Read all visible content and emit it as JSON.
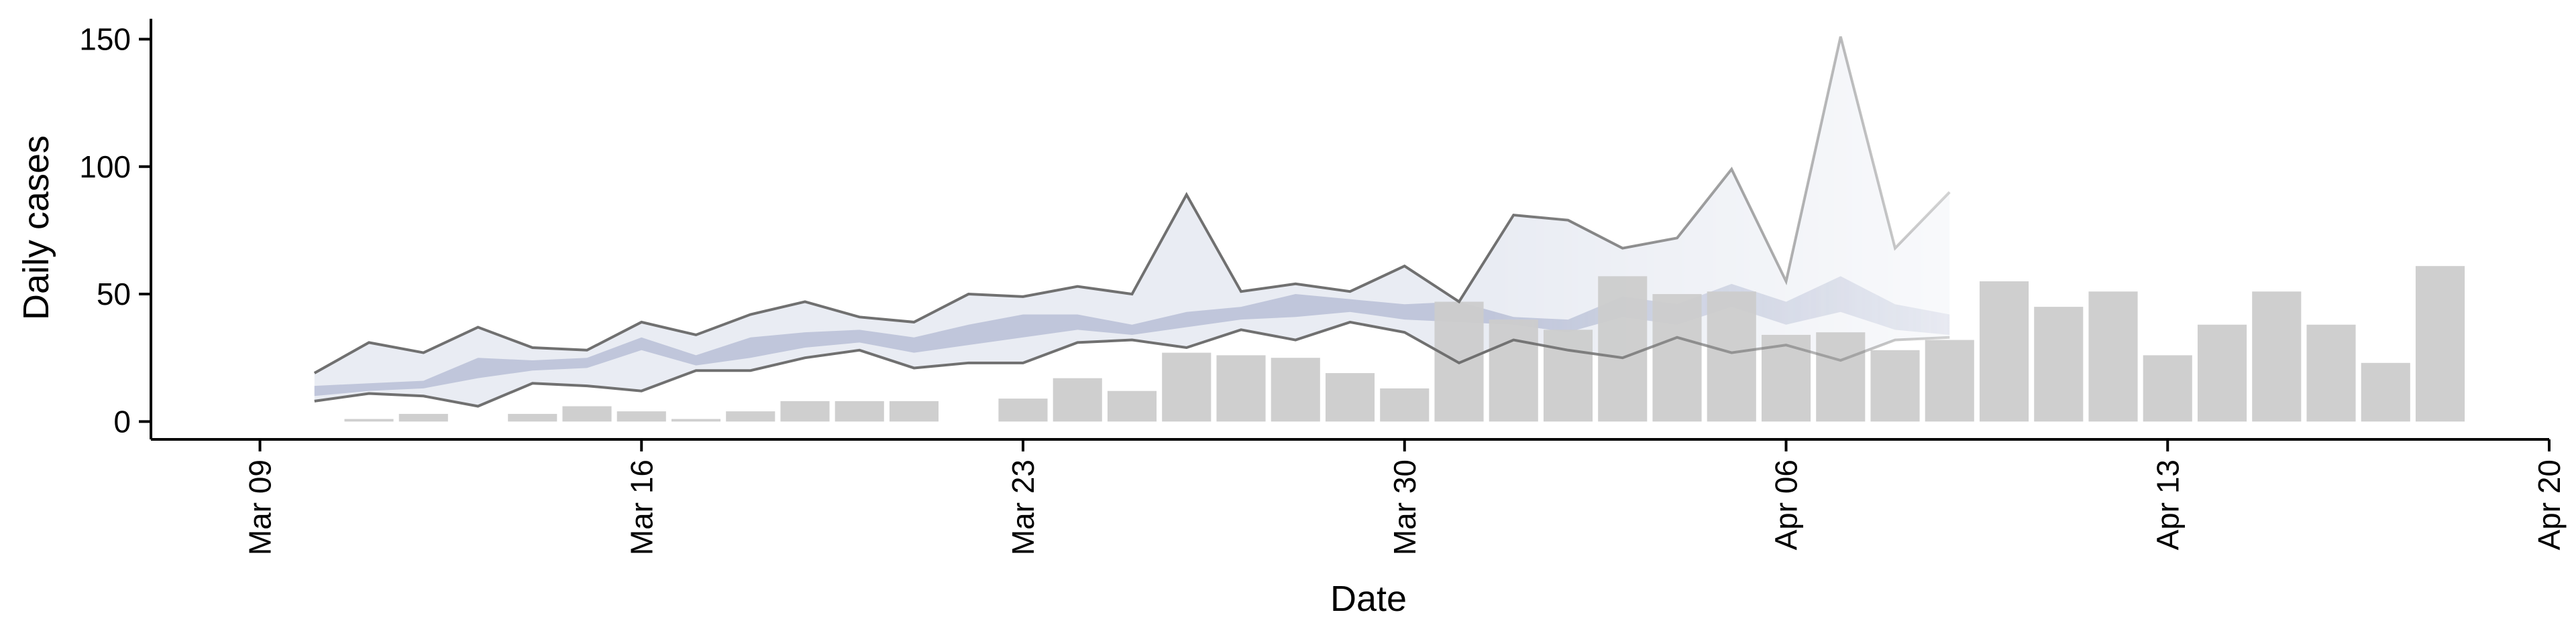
{
  "chart_data": {
    "type": "bar",
    "title": "",
    "xlabel": "Date",
    "ylabel": "Daily cases",
    "x_ticks": [
      "Mar 09",
      "Mar 16",
      "Mar 23",
      "Mar 30",
      "Apr 06",
      "Apr 13",
      "Apr 20"
    ],
    "x_tick_dates": [
      "2020-03-09",
      "2020-03-16",
      "2020-03-23",
      "2020-03-30",
      "2020-04-06",
      "2020-04-13",
      "2020-04-20"
    ],
    "y_ticks": [
      "0",
      "50",
      "100",
      "150"
    ],
    "y_tick_values": [
      0,
      50,
      100,
      150
    ],
    "xlim": [
      "2020-03-07",
      "2020-04-20"
    ],
    "ylim": [
      -7,
      158
    ],
    "grid": false,
    "colors": {
      "bars": "#cccccc",
      "outer_band": "#e9ecf3",
      "inner_band": "#b8c0d6",
      "band_lines": "#707070",
      "axis": "#000000"
    },
    "bars": {
      "name": "",
      "dates": [
        "2020-03-11",
        "2020-03-12",
        "2020-03-14",
        "2020-03-15",
        "2020-03-16",
        "2020-03-17",
        "2020-03-18",
        "2020-03-19",
        "2020-03-20",
        "2020-03-21",
        "2020-03-23",
        "2020-03-24",
        "2020-03-25",
        "2020-03-26",
        "2020-03-27",
        "2020-03-28",
        "2020-03-29",
        "2020-03-30",
        "2020-03-31",
        "2020-04-01",
        "2020-04-02",
        "2020-04-03",
        "2020-04-04",
        "2020-04-05",
        "2020-04-06",
        "2020-04-07",
        "2020-04-08",
        "2020-04-09",
        "2020-04-10",
        "2020-04-11",
        "2020-04-12",
        "2020-04-13",
        "2020-04-14",
        "2020-04-15",
        "2020-04-16",
        "2020-04-17",
        "2020-04-18"
      ],
      "values": [
        1,
        3,
        3,
        6,
        4,
        1,
        4,
        8,
        8,
        8,
        9,
        17,
        12,
        27,
        26,
        25,
        19,
        13,
        47,
        40,
        36,
        57,
        50,
        51,
        34,
        35,
        28,
        32,
        55,
        45,
        51,
        26,
        38,
        51,
        38,
        23,
        61
      ]
    },
    "band": {
      "dates": [
        "2020-03-10",
        "2020-03-11",
        "2020-03-12",
        "2020-03-13",
        "2020-03-14",
        "2020-03-15",
        "2020-03-16",
        "2020-03-17",
        "2020-03-18",
        "2020-03-19",
        "2020-03-20",
        "2020-03-21",
        "2020-03-22",
        "2020-03-23",
        "2020-03-24",
        "2020-03-25",
        "2020-03-26",
        "2020-03-27",
        "2020-03-28",
        "2020-03-29",
        "2020-03-30",
        "2020-03-31",
        "2020-04-01",
        "2020-04-02",
        "2020-04-03",
        "2020-04-04",
        "2020-04-05",
        "2020-04-06",
        "2020-04-07",
        "2020-04-08",
        "2020-04-09"
      ],
      "outer_upper": [
        19,
        31,
        27,
        37,
        29,
        28,
        39,
        34,
        42,
        47,
        41,
        39,
        50,
        49,
        53,
        50,
        89,
        51,
        54,
        51,
        61,
        47,
        81,
        79,
        68,
        72,
        99,
        55,
        151,
        68,
        90
      ],
      "outer_lower": [
        8,
        11,
        10,
        6,
        15,
        14,
        12,
        20,
        20,
        25,
        28,
        21,
        23,
        23,
        31,
        32,
        29,
        36,
        32,
        39,
        35,
        23,
        32,
        28,
        25,
        33,
        27,
        30,
        24,
        32,
        33
      ],
      "inner_upper": [
        14,
        15,
        16,
        25,
        24,
        25,
        33,
        26,
        33,
        35,
        36,
        33,
        38,
        42,
        42,
        38,
        43,
        45,
        50,
        48,
        46,
        47,
        41,
        40,
        49,
        46,
        54,
        47,
        57,
        46,
        42
      ],
      "inner_lower": [
        10,
        12,
        13,
        17,
        20,
        21,
        28,
        22,
        25,
        29,
        31,
        27,
        30,
        33,
        36,
        34,
        37,
        40,
        41,
        43,
        40,
        39,
        38,
        35,
        41,
        38,
        45,
        38,
        43,
        36,
        34
      ]
    }
  }
}
